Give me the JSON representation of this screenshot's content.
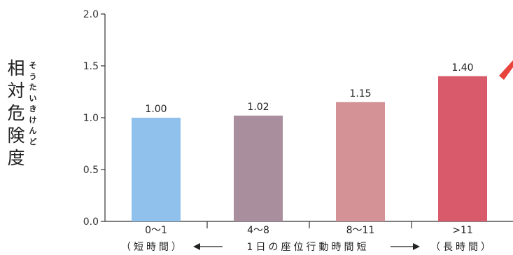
{
  "chart_data": {
    "type": "bar",
    "categories": [
      "0～1",
      "4～8",
      "8～11",
      ">11"
    ],
    "values": [
      1.0,
      1.02,
      1.15,
      1.4
    ],
    "value_labels": [
      "1.00",
      "1.02",
      "1.15",
      "1.40"
    ],
    "colors": [
      "#8fc1ec",
      "#a98f9d",
      "#d49196",
      "#d95a6a"
    ],
    "ylim": [
      0,
      2.0
    ],
    "yticks": [
      "0.0",
      "0.5",
      "1.0",
      "1.5",
      "2.0"
    ],
    "ytick_values": [
      0,
      0.5,
      1.0,
      1.5,
      2.0
    ],
    "ylabel": "相対危険度",
    "ylabel_ruby": "そうたいきけんど",
    "xlabel_left": "（短時間）",
    "xlabel_middle": "1日の座位行動時間短",
    "xlabel_right": "（長時間）",
    "grid": false,
    "legend": "none"
  }
}
